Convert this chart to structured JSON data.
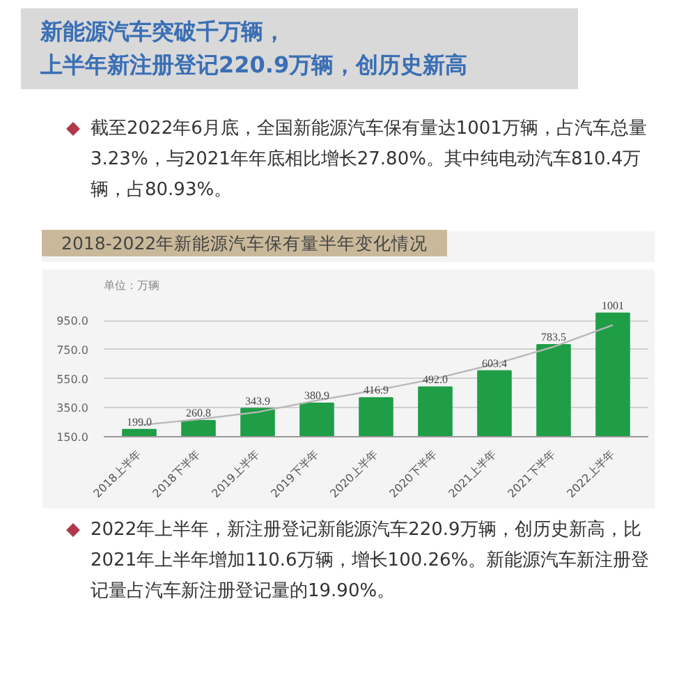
{
  "chart_data": {
    "type": "bar",
    "title": "新能源汽车突破千万辆，上半年新注册登记220.9万辆，创历史新高",
    "subtitle": "2018-2022年新能源汽车保有量半年变化情况",
    "ylabel": "单位：万辆",
    "annotations": [
      "截至2022年6月底，全国新能源汽车保有量达1001万辆，占汽车总量3.23%，与2021年年底相比增长27.80%。其中纯电动汽车810.4万辆，占80.93%。",
      "2022年上半年，新注册登记新能源汽车220.9万辆，创历史新高，比2021年上半年增加110.6万辆，增长100.26%。新能源汽车新注册登记量占汽车新注册登记量的19.90%。"
    ],
    "categories": [
      "2018上半年",
      "2018下半年",
      "2019上半年",
      "2019下半年",
      "2020上半年",
      "2020下半年",
      "2021上半年",
      "2021下半年",
      "2022上半年"
    ],
    "series": [
      {
        "color": "#1f9e47",
        "values": [
          199.0,
          260.8,
          343.9,
          380.9,
          416.9,
          492.0,
          603.4,
          783.5,
          1001
        ]
      },
      {
        "type": "line",
        "color": "#b8b8b8",
        "values": [
          230,
          270,
          320,
          400,
          470,
          550,
          650,
          770,
          920
        ]
      }
    ],
    "value_labels": [
      "199.0",
      "260.8",
      "343.9",
      "380.9",
      "416.9",
      "492.0",
      "603.4",
      "783.5",
      "1001"
    ],
    "ylim": [
      150,
      1100
    ],
    "yticks": [
      {
        "value": 150,
        "label": "150.0"
      },
      {
        "value": 350,
        "label": "350.0"
      },
      {
        "value": 550,
        "label": "550.0"
      },
      {
        "value": 750,
        "label": "750.0"
      },
      {
        "value": 950,
        "label": "950.0"
      }
    ],
    "grid": "y"
  }
}
